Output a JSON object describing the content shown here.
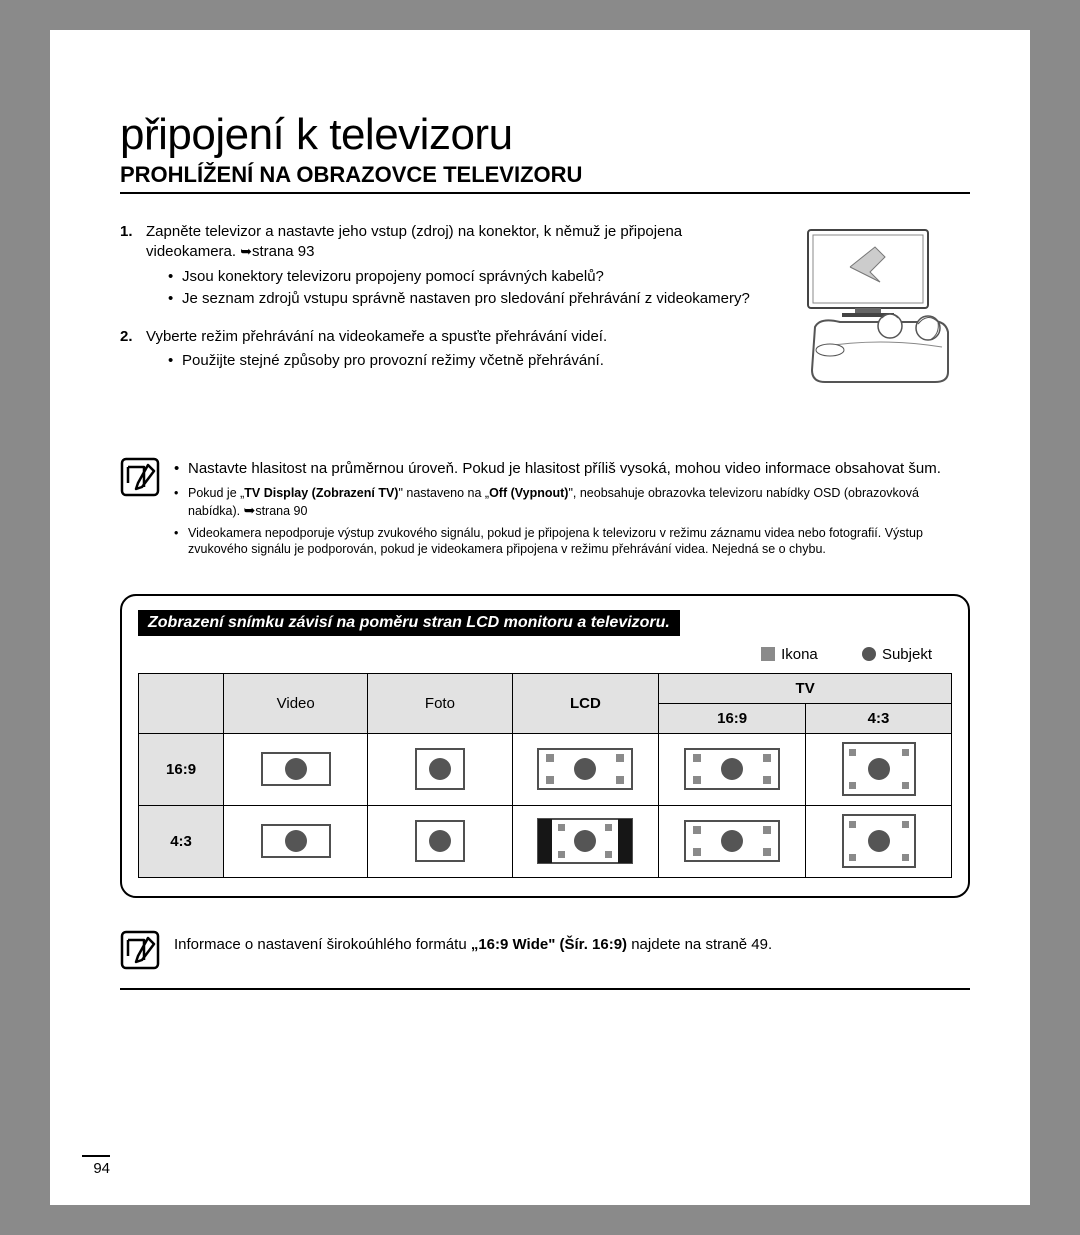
{
  "title": "připojení k televizoru",
  "subtitle": "PROHLÍŽENÍ NA OBRAZOVCE TELEVIZORU",
  "steps": [
    {
      "text": "Zapněte televizor a nastavte jeho vstup (zdroj) na konektor, k němuž je připojena videokamera. ",
      "page_ref": "strana 93",
      "bullets": [
        "Jsou konektory televizoru propojeny pomocí správných kabelů?",
        "Je seznam zdrojů vstupu správně nastaven pro sledování přehrávání z videokamery?"
      ]
    },
    {
      "text": "Vyberte režim přehrávání na videokameře a spusťte přehrávání videí.",
      "bullets": [
        "Použijte stejné způsoby pro provozní režimy včetně přehrávání."
      ]
    }
  ],
  "note1": {
    "items": [
      {
        "size": "big",
        "text": "Nastavte hlasitost na průměrnou úroveň. Pokud je hlasitost příliš vysoká, mohou video informace obsahovat šum."
      },
      {
        "size": "small",
        "html": "Pokud je „<b>TV Display (Zobrazení TV)</b>\" nastaveno na „<b>Off (Vypnout)</b>\", neobsahuje obrazovka televizoru nabídky OSD (obrazovková nabídka). <span class='arrow'></span>strana 90"
      },
      {
        "size": "small",
        "text": "Videokamera nepodporuje výstup zvukového signálu, pokud je připojena k televizoru v režimu záznamu videa nebo fotografií. Výstup zvukového signálu je podporován, pokud je videokamera připojena v režimu přehrávání videa. Nejedná se o chybu."
      }
    ]
  },
  "table": {
    "title": "Zobrazení snímku závisí na poměru stran LCD monitoru a televizoru.",
    "legend_icon": "Ikona",
    "legend_subject": "Subjekt",
    "headers": {
      "video": "Video",
      "foto": "Foto",
      "lcd": "LCD",
      "tv": "TV",
      "r169": "16:9",
      "r43": "4:3"
    },
    "row_labels": [
      "16:9",
      "4:3"
    ],
    "colors": {
      "cell_bg": "#ffffff",
      "header_bg": "#e2e2e2",
      "frame_stroke": "#505050",
      "subject_fill": "#555555",
      "icon_fill": "#8a8a8a",
      "pillar_fill": "#161616"
    }
  },
  "note2": {
    "html": "Informace o nastavení širokoúhlého formátu <b>„16:9 Wide\" (Šír. 16:9)</b> najdete na straně 49."
  },
  "page_number": "94"
}
